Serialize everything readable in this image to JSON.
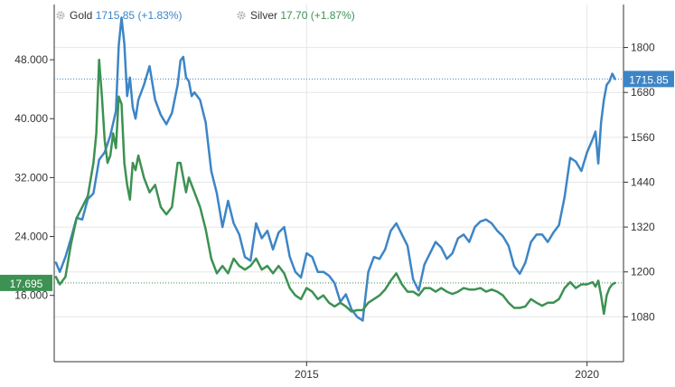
{
  "chart_data": {
    "type": "line",
    "title": "",
    "legend": {
      "placement": "top-left",
      "items": [
        {
          "name": "Gold",
          "value": "1715.85",
          "change": "(+1.83%)",
          "color": "#3d85c6"
        },
        {
          "name": "Silver",
          "value": "17.70",
          "change": "(+1.87%)",
          "color": "#3d9152"
        }
      ]
    },
    "x_axis": {
      "ticks": [
        {
          "label": "2015",
          "x": 2015.0
        },
        {
          "label": "2020",
          "x": 2020.0
        }
      ],
      "range": [
        2010.5,
        2020.65
      ]
    },
    "left_axis": {
      "series": "Silver",
      "ticks": [
        "16.000",
        "24.000",
        "32.000",
        "40.000",
        "48.000"
      ],
      "tick_values": [
        16,
        24,
        32,
        40,
        48
      ],
      "range": [
        7,
        55.5
      ],
      "last_value_label": "17.695",
      "last_value": 17.695
    },
    "right_axis": {
      "series": "Gold",
      "ticks": [
        "1080",
        "1200",
        "1320",
        "1440",
        "1560",
        "1680",
        "1800"
      ],
      "tick_values": [
        1080,
        1200,
        1320,
        1440,
        1560,
        1680,
        1800
      ],
      "range": [
        960,
        1915
      ],
      "last_value_label": "1715.85",
      "last_value": 1715.85
    },
    "grid": true,
    "series": [
      {
        "name": "Gold",
        "axis": "right",
        "color": "#3d85c6",
        "x": [
          2010.53,
          2010.6,
          2010.7,
          2010.8,
          2010.9,
          2011.0,
          2011.1,
          2011.2,
          2011.3,
          2011.4,
          2011.5,
          2011.6,
          2011.65,
          2011.7,
          2011.75,
          2011.8,
          2011.85,
          2011.9,
          2011.95,
          2012.0,
          2012.1,
          2012.2,
          2012.3,
          2012.4,
          2012.5,
          2012.6,
          2012.7,
          2012.75,
          2012.8,
          2012.85,
          2012.9,
          2012.95,
          2013.0,
          2013.1,
          2013.2,
          2013.3,
          2013.4,
          2013.5,
          2013.6,
          2013.7,
          2013.8,
          2013.9,
          2014.0,
          2014.1,
          2014.2,
          2014.3,
          2014.4,
          2014.5,
          2014.6,
          2014.7,
          2014.8,
          2014.9,
          2015.0,
          2015.1,
          2015.2,
          2015.3,
          2015.4,
          2015.5,
          2015.6,
          2015.7,
          2015.8,
          2015.9,
          2016.0,
          2016.1,
          2016.2,
          2016.3,
          2016.4,
          2016.5,
          2016.6,
          2016.7,
          2016.8,
          2016.9,
          2017.0,
          2017.1,
          2017.2,
          2017.3,
          2017.4,
          2017.5,
          2017.6,
          2017.7,
          2017.8,
          2017.9,
          2018.0,
          2018.1,
          2018.2,
          2018.3,
          2018.4,
          2018.5,
          2018.6,
          2018.7,
          2018.8,
          2018.9,
          2019.0,
          2019.1,
          2019.2,
          2019.3,
          2019.4,
          2019.5,
          2019.6,
          2019.7,
          2019.8,
          2019.9,
          2020.0,
          2020.1,
          2020.15,
          2020.2,
          2020.25,
          2020.3,
          2020.35,
          2020.4,
          2020.45,
          2020.5
        ],
        "values": [
          1225,
          1200,
          1240,
          1290,
          1345,
          1340,
          1395,
          1410,
          1500,
          1520,
          1565,
          1630,
          1805,
          1880,
          1810,
          1670,
          1720,
          1640,
          1610,
          1660,
          1700,
          1750,
          1660,
          1620,
          1595,
          1625,
          1700,
          1765,
          1775,
          1720,
          1710,
          1670,
          1680,
          1660,
          1600,
          1470,
          1410,
          1320,
          1390,
          1330,
          1300,
          1240,
          1230,
          1330,
          1290,
          1310,
          1260,
          1305,
          1320,
          1240,
          1200,
          1185,
          1250,
          1240,
          1200,
          1200,
          1190,
          1170,
          1120,
          1140,
          1100,
          1080,
          1070,
          1200,
          1240,
          1235,
          1260,
          1310,
          1330,
          1300,
          1270,
          1180,
          1150,
          1220,
          1250,
          1280,
          1265,
          1235,
          1250,
          1290,
          1300,
          1280,
          1320,
          1335,
          1340,
          1330,
          1310,
          1295,
          1270,
          1215,
          1195,
          1225,
          1280,
          1300,
          1300,
          1280,
          1305,
          1325,
          1400,
          1505,
          1495,
          1470,
          1520,
          1555,
          1575,
          1490,
          1600,
          1660,
          1700,
          1710,
          1730,
          1715.85
        ]
      },
      {
        "name": "Silver",
        "axis": "left",
        "color": "#3d9152",
        "x": [
          2010.53,
          2010.6,
          2010.7,
          2010.8,
          2010.9,
          2011.0,
          2011.1,
          2011.2,
          2011.25,
          2011.3,
          2011.35,
          2011.4,
          2011.45,
          2011.5,
          2011.55,
          2011.6,
          2011.65,
          2011.7,
          2011.75,
          2011.8,
          2011.85,
          2011.9,
          2011.95,
          2012.0,
          2012.1,
          2012.2,
          2012.3,
          2012.4,
          2012.5,
          2012.6,
          2012.7,
          2012.75,
          2012.8,
          2012.85,
          2012.9,
          2012.95,
          2013.0,
          2013.1,
          2013.2,
          2013.3,
          2013.4,
          2013.5,
          2013.6,
          2013.7,
          2013.8,
          2013.9,
          2014.0,
          2014.1,
          2014.2,
          2014.3,
          2014.4,
          2014.5,
          2014.6,
          2014.7,
          2014.8,
          2014.9,
          2015.0,
          2015.1,
          2015.2,
          2015.3,
          2015.4,
          2015.5,
          2015.6,
          2015.7,
          2015.8,
          2015.9,
          2016.0,
          2016.1,
          2016.2,
          2016.3,
          2016.4,
          2016.5,
          2016.6,
          2016.7,
          2016.8,
          2016.9,
          2017.0,
          2017.1,
          2017.2,
          2017.3,
          2017.4,
          2017.5,
          2017.6,
          2017.7,
          2017.8,
          2017.9,
          2018.0,
          2018.1,
          2018.2,
          2018.3,
          2018.4,
          2018.5,
          2018.6,
          2018.7,
          2018.8,
          2018.9,
          2019.0,
          2019.1,
          2019.2,
          2019.3,
          2019.4,
          2019.5,
          2019.6,
          2019.7,
          2019.8,
          2019.9,
          2020.0,
          2020.1,
          2020.15,
          2020.2,
          2020.25,
          2020.3,
          2020.35,
          2020.4,
          2020.45,
          2020.5
        ],
        "values": [
          18.5,
          17.5,
          18.5,
          23,
          26.5,
          28,
          29.5,
          34,
          38,
          48,
          43,
          37,
          34,
          35,
          38,
          36,
          43,
          42,
          34,
          31,
          29,
          34,
          33,
          35,
          32,
          30,
          31,
          28,
          27,
          28,
          34,
          34,
          32,
          30,
          32,
          31,
          30,
          28,
          25,
          21,
          19,
          20,
          19,
          21,
          20,
          19.5,
          20,
          21,
          19.5,
          20,
          19,
          20,
          19,
          17,
          16,
          15.5,
          17,
          16.5,
          15.5,
          16,
          15,
          14.5,
          15,
          14.5,
          13.8,
          14,
          14,
          15,
          15.5,
          16,
          16.8,
          18,
          19,
          17.5,
          16.5,
          16.5,
          16,
          17,
          17,
          16.5,
          17,
          16.5,
          16.2,
          16.5,
          17,
          16.8,
          16.8,
          17,
          16.5,
          16.8,
          16.5,
          16,
          15,
          14.3,
          14.3,
          14.5,
          15.5,
          15,
          14.6,
          15,
          15,
          15.5,
          17,
          17.8,
          17,
          17.5,
          17.5,
          17.8,
          17.2,
          18,
          16,
          13.5,
          16,
          17,
          17.5,
          17.7
        ]
      }
    ]
  }
}
